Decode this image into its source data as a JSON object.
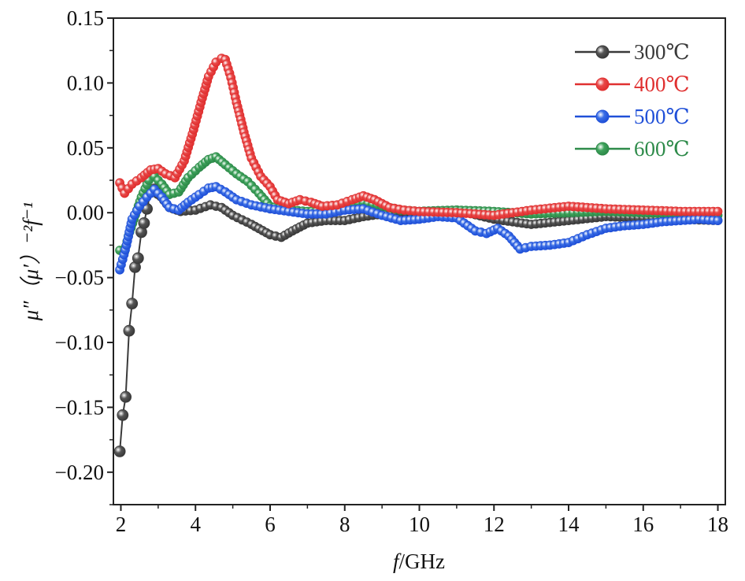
{
  "chart_data": {
    "type": "scatter",
    "xlabel_italic": "f",
    "xlabel_rest": "/GHz",
    "ylabel": "μ″（μ′）⁻²f⁻¹",
    "xlim": [
      1.8,
      18.2
    ],
    "ylim": [
      -0.225,
      0.15
    ],
    "xticks": [
      2,
      4,
      6,
      8,
      10,
      12,
      14,
      16,
      18
    ],
    "yticks": [
      0.15,
      0.1,
      0.05,
      0.0,
      -0.05,
      -0.1,
      -0.15,
      -0.2
    ],
    "ytick_labels": [
      "0.15",
      "0.10",
      "0.05",
      "0.00",
      "−0.05",
      "−0.10",
      "−0.15",
      "−0.20"
    ],
    "legend_position": "top-right",
    "series": [
      {
        "name": "300℃",
        "color": "#3a3a3a",
        "marker_color": "#555555",
        "points": [
          [
            1.97,
            -0.184
          ],
          [
            2.05,
            -0.156
          ],
          [
            2.13,
            -0.142
          ],
          [
            2.22,
            -0.091
          ],
          [
            2.3,
            -0.07
          ],
          [
            2.38,
            -0.042
          ],
          [
            2.46,
            -0.035
          ],
          [
            2.55,
            -0.015
          ],
          [
            2.62,
            -0.008
          ],
          [
            2.7,
            0.003
          ],
          [
            2.8,
            0.016
          ],
          [
            2.9,
            0.018
          ],
          [
            3.0,
            0.015
          ]
        ]
      },
      {
        "name": "400℃",
        "color": "#e03030",
        "marker_color": "#e84848",
        "points": [
          [
            1.97,
            0.023
          ],
          [
            2.1,
            0.015
          ],
          [
            2.3,
            0.022
          ],
          [
            2.55,
            0.027
          ],
          [
            2.8,
            0.033
          ],
          [
            3.0,
            0.034
          ],
          [
            3.2,
            0.03
          ],
          [
            3.45,
            0.027
          ],
          [
            3.7,
            0.04
          ],
          [
            3.95,
            0.064
          ],
          [
            4.15,
            0.085
          ],
          [
            4.35,
            0.105
          ],
          [
            4.55,
            0.116
          ],
          [
            4.7,
            0.119
          ],
          [
            4.8,
            0.118
          ],
          [
            4.95,
            0.104
          ],
          [
            5.1,
            0.085
          ],
          [
            5.3,
            0.062
          ],
          [
            5.5,
            0.042
          ],
          [
            5.75,
            0.028
          ],
          [
            6.0,
            0.02
          ],
          [
            6.2,
            0.01
          ],
          [
            6.5,
            0.007
          ],
          [
            6.8,
            0.01
          ],
          [
            7.1,
            0.008
          ],
          [
            7.4,
            0.005
          ],
          [
            7.8,
            0.006
          ],
          [
            8.2,
            0.01
          ],
          [
            8.5,
            0.013
          ],
          [
            8.8,
            0.01
          ],
          [
            9.2,
            0.004
          ],
          [
            9.6,
            0.002
          ],
          [
            10.0,
            0.001
          ],
          [
            11.0,
            0.0
          ],
          [
            12.0,
            -0.002
          ],
          [
            13.0,
            0.002
          ],
          [
            14.0,
            0.005
          ],
          [
            15.0,
            0.003
          ],
          [
            16.0,
            0.002
          ],
          [
            17.0,
            0.001
          ],
          [
            18.0,
            0.001
          ]
        ]
      },
      {
        "name": "500℃",
        "color": "#2050d8",
        "marker_color": "#3a6ee6",
        "points": [
          [
            1.97,
            -0.044
          ],
          [
            2.05,
            -0.036
          ],
          [
            2.15,
            -0.025
          ],
          [
            2.3,
            -0.005
          ],
          [
            2.5,
            0.005
          ],
          [
            2.7,
            0.012
          ],
          [
            2.9,
            0.018
          ],
          [
            3.1,
            0.012
          ],
          [
            3.3,
            0.004
          ],
          [
            3.55,
            0.002
          ],
          [
            3.8,
            0.008
          ],
          [
            4.1,
            0.014
          ],
          [
            4.35,
            0.019
          ],
          [
            4.55,
            0.02
          ],
          [
            4.8,
            0.016
          ],
          [
            5.1,
            0.01
          ],
          [
            5.5,
            0.006
          ],
          [
            6.0,
            0.003
          ],
          [
            6.5,
            0.001
          ],
          [
            7.0,
            -0.001
          ],
          [
            7.5,
            -0.001
          ],
          [
            8.0,
            0.002
          ],
          [
            8.5,
            0.003
          ],
          [
            9.0,
            -0.002
          ],
          [
            9.5,
            -0.006
          ],
          [
            10.0,
            -0.005
          ],
          [
            10.5,
            -0.003
          ],
          [
            11.0,
            -0.004
          ],
          [
            11.5,
            -0.014
          ],
          [
            11.8,
            -0.016
          ],
          [
            12.1,
            -0.012
          ],
          [
            12.4,
            -0.018
          ],
          [
            12.7,
            -0.028
          ],
          [
            13.0,
            -0.026
          ],
          [
            13.5,
            -0.025
          ],
          [
            14.0,
            -0.023
          ],
          [
            14.5,
            -0.017
          ],
          [
            15.0,
            -0.012
          ],
          [
            15.5,
            -0.01
          ],
          [
            16.0,
            -0.009
          ],
          [
            16.5,
            -0.007
          ],
          [
            17.0,
            -0.006
          ],
          [
            17.5,
            -0.005
          ],
          [
            18.0,
            -0.006
          ]
        ]
      },
      {
        "name": "600℃",
        "color": "#2e8b4a",
        "marker_color": "#3fa35c",
        "points": [
          [
            1.97,
            -0.029
          ],
          [
            2.1,
            -0.03
          ],
          [
            2.2,
            -0.018
          ],
          [
            2.35,
            -0.005
          ],
          [
            2.55,
            0.012
          ],
          [
            2.75,
            0.025
          ],
          [
            2.9,
            0.028
          ],
          [
            3.1,
            0.022
          ],
          [
            3.3,
            0.014
          ],
          [
            3.55,
            0.016
          ],
          [
            3.8,
            0.027
          ],
          [
            4.1,
            0.035
          ],
          [
            4.35,
            0.041
          ],
          [
            4.55,
            0.043
          ],
          [
            4.8,
            0.037
          ],
          [
            5.1,
            0.03
          ],
          [
            5.4,
            0.024
          ],
          [
            5.7,
            0.015
          ],
          [
            6.0,
            0.005
          ],
          [
            6.5,
            0.002
          ],
          [
            7.0,
            0.001
          ],
          [
            7.5,
            0.002
          ],
          [
            8.0,
            0.006
          ],
          [
            8.5,
            0.008
          ],
          [
            9.0,
            0.005
          ],
          [
            9.5,
            0.002
          ],
          [
            10.0,
            0.001
          ],
          [
            11.0,
            0.002
          ],
          [
            12.0,
            0.001
          ],
          [
            13.0,
            -0.001
          ],
          [
            14.0,
            0.0
          ],
          [
            15.0,
            0.001
          ],
          [
            16.0,
            0.0
          ],
          [
            17.0,
            -0.001
          ],
          [
            18.0,
            -0.002
          ]
        ]
      },
      {
        "name": "300℃",
        "continuation": true,
        "color": "#3a3a3a",
        "marker_color": "#555555",
        "points": [
          [
            3.0,
            0.015
          ],
          [
            3.3,
            0.004
          ],
          [
            3.6,
            0.001
          ],
          [
            4.0,
            0.002
          ],
          [
            4.4,
            0.006
          ],
          [
            4.7,
            0.004
          ],
          [
            5.0,
            -0.002
          ],
          [
            5.5,
            -0.009
          ],
          [
            6.0,
            -0.017
          ],
          [
            6.3,
            -0.019
          ],
          [
            6.6,
            -0.014
          ],
          [
            7.0,
            -0.008
          ],
          [
            7.5,
            -0.006
          ],
          [
            8.0,
            -0.006
          ],
          [
            8.5,
            -0.003
          ],
          [
            9.0,
            -0.001
          ],
          [
            9.5,
            0.0
          ],
          [
            10.0,
            0.001
          ],
          [
            11.0,
            0.002
          ],
          [
            12.0,
            -0.005
          ],
          [
            13.0,
            -0.009
          ],
          [
            14.0,
            -0.006
          ],
          [
            15.0,
            -0.003
          ],
          [
            16.0,
            -0.004
          ],
          [
            17.0,
            -0.005
          ],
          [
            18.0,
            -0.006
          ]
        ]
      }
    ]
  }
}
